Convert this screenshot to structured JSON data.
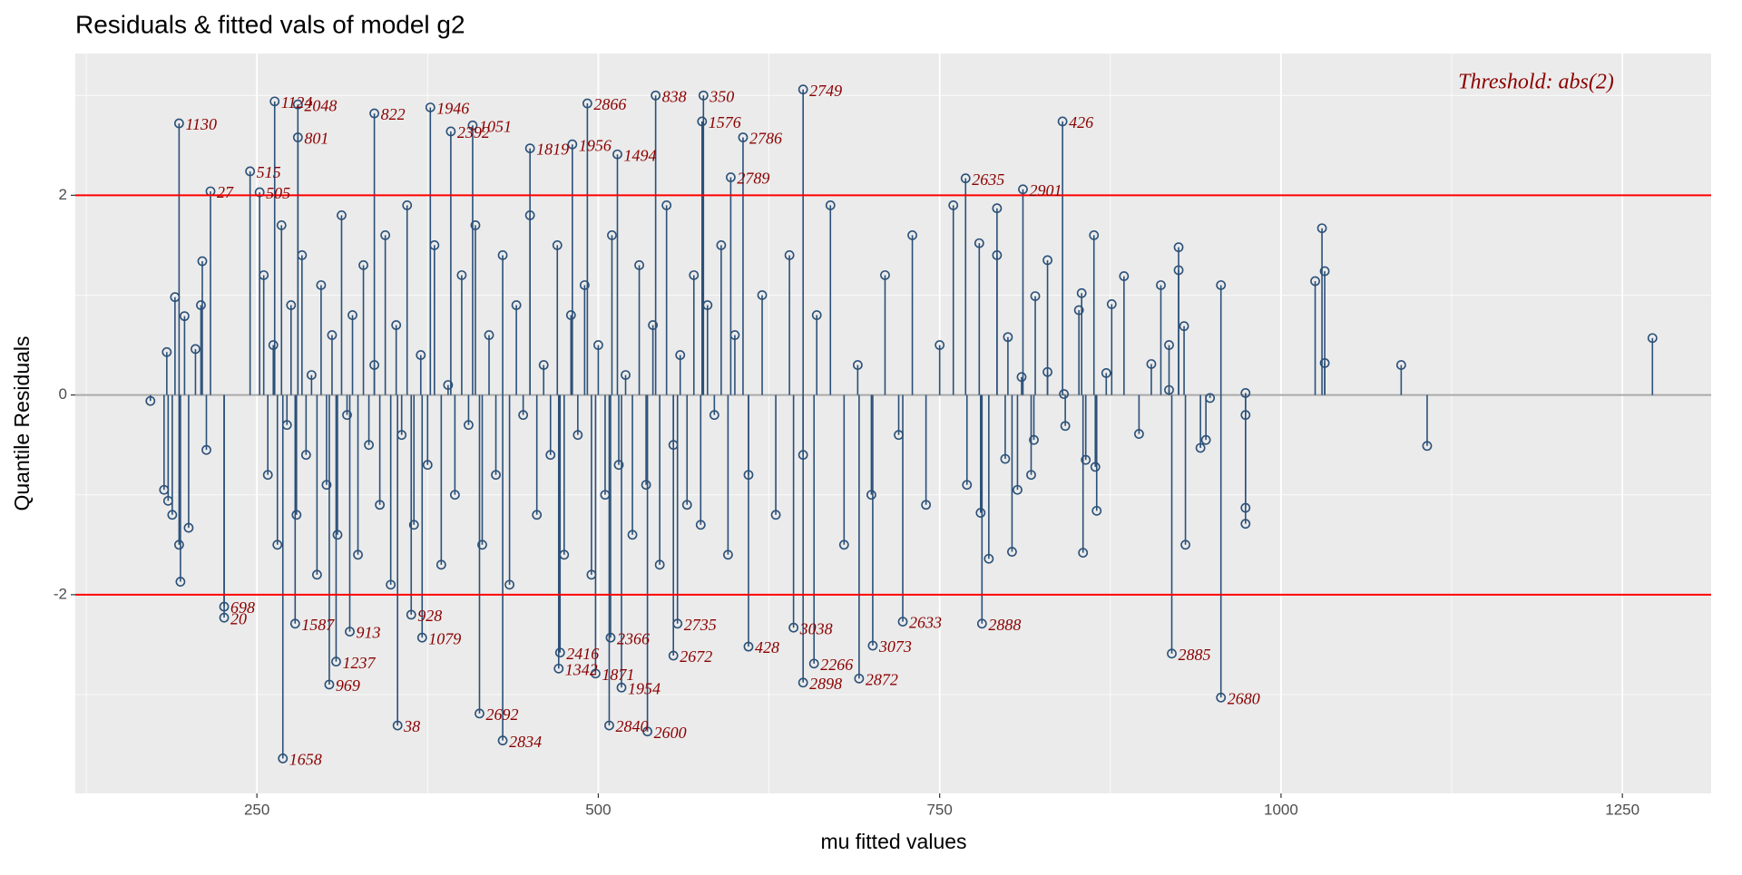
{
  "chart_data": {
    "type": "stem",
    "title": "Residuals & fitted vals of model g2",
    "x_label": "mu fitted values",
    "y_label": "Quantile Residuals",
    "annotation": "Threshold: abs(2)",
    "annotation_color": "#8b0000",
    "label_color": "#8b0000",
    "xlim": [
      117,
      1315
    ],
    "ylim": [
      -3.99,
      3.42
    ],
    "xticks": [
      250,
      500,
      750,
      1000,
      1250
    ],
    "yticks": [
      -2,
      0,
      2
    ],
    "minor_xticks": [
      125,
      375,
      625,
      875,
      1125
    ],
    "minor_yticks": [
      -3,
      -1,
      1,
      3
    ],
    "grid": true,
    "baseline": 0,
    "baseline_color": "#aaaaaa",
    "thresholds": [
      2,
      -2
    ],
    "threshold_color": "#ff0000",
    "series": [
      {
        "color": "#2b5078",
        "x": [
          193,
          216,
          245,
          252,
          263,
          280,
          280,
          336,
          377,
          392,
          408,
          450,
          481,
          492,
          514,
          542,
          577,
          576,
          606,
          650,
          597,
          769,
          811,
          840,
          226,
          226,
          278,
          318,
          308,
          303,
          353,
          269,
          413,
          430,
          472,
          471,
          498,
          517,
          508,
          536,
          509,
          555,
          558,
          610,
          643,
          658,
          650,
          691,
          701,
          723,
          781,
          920,
          956,
          363,
          371
        ],
        "values": [
          2.72,
          2.04,
          2.24,
          2.03,
          2.94,
          2.91,
          2.58,
          2.82,
          2.88,
          2.64,
          2.7,
          2.47,
          2.51,
          2.92,
          2.41,
          3.0,
          3.0,
          2.74,
          2.58,
          3.06,
          2.18,
          2.17,
          2.06,
          2.74,
          -2.12,
          -2.23,
          -2.29,
          -2.37,
          -2.67,
          -2.9,
          -3.31,
          -3.64,
          -3.19,
          -3.46,
          -2.58,
          -2.74,
          -2.79,
          -2.93,
          -3.31,
          -3.37,
          -2.43,
          -2.61,
          -2.29,
          -2.52,
          -2.33,
          -2.69,
          -2.88,
          -2.84,
          -2.51,
          -2.27,
          -2.29,
          -2.59,
          -3.03,
          -2.2,
          -2.43
        ],
        "labels": [
          "1130",
          "27",
          "515",
          "505",
          "1124",
          "2048",
          "801",
          "822",
          "1946",
          "2392",
          "1051",
          "1819",
          "1956",
          "2866",
          "1494",
          "838",
          "350",
          "1576",
          "2786",
          "2749",
          "2789",
          "2635",
          "2901",
          "426",
          "698",
          "20",
          "1587",
          "913",
          "1237",
          "969",
          "38",
          "1658",
          "2692",
          "2834",
          "2416",
          "1342",
          "1871",
          "1954",
          "2840",
          "2600",
          "2366",
          "2672",
          "2735",
          "428",
          "3038",
          "2266",
          "2898",
          "2872",
          "3073",
          "2633",
          "2888",
          "2885",
          "2680",
          "928",
          "1079"
        ]
      },
      {
        "color": "#2b5078",
        "x": [
          1025,
          1030,
          1032,
          1032,
          1088,
          1107,
          1272,
          974,
          974,
          974,
          974,
          956,
          929,
          925,
          925,
          930,
          918,
          918,
          912,
          905,
          896,
          945,
          941,
          948,
          876,
          885,
          872,
          863,
          864,
          865,
          855,
          857,
          852,
          854,
          841,
          842,
          829,
          829,
          820,
          819,
          817,
          810,
          807,
          803,
          792,
          792,
          800,
          798,
          786,
          780,
          779,
          172,
          184,
          182,
          185,
          188,
          190,
          193,
          194,
          197,
          200,
          210,
          209,
          205,
          213,
          255,
          258,
          262,
          265,
          268,
          272,
          275,
          279,
          283,
          286,
          290,
          294,
          297,
          301,
          305,
          309,
          312,
          316,
          320,
          324,
          328,
          332,
          336,
          340,
          344,
          348,
          352,
          356,
          360,
          365,
          370,
          375,
          380,
          385,
          390,
          395,
          400,
          405,
          410,
          415,
          420,
          425,
          430,
          435,
          440,
          445,
          450,
          455,
          460,
          465,
          470,
          475,
          480,
          485,
          490,
          495,
          500,
          505,
          510,
          515,
          520,
          525,
          530,
          535,
          540,
          545,
          550,
          555,
          560,
          565,
          570,
          575,
          580,
          585,
          590,
          595,
          600,
          610,
          620,
          630,
          640,
          650,
          660,
          670,
          680,
          690,
          700,
          710,
          720,
          730,
          740,
          750,
          760,
          770
        ],
        "values": [
          1.14,
          1.67,
          1.24,
          0.32,
          0.3,
          -0.51,
          0.57,
          0.02,
          -0.2,
          -1.13,
          -1.29,
          1.1,
          0.69,
          1.48,
          1.25,
          -1.5,
          0.05,
          0.5,
          1.1,
          0.31,
          -0.39,
          -0.45,
          -0.53,
          -0.03,
          0.91,
          1.19,
          0.22,
          1.6,
          -0.72,
          -1.16,
          -1.58,
          -0.65,
          0.85,
          1.02,
          0.01,
          -0.31,
          1.35,
          0.23,
          0.99,
          -0.45,
          -0.8,
          0.18,
          -0.95,
          -1.57,
          1.4,
          1.87,
          0.58,
          -0.64,
          -1.64,
          -1.18,
          1.52,
          -0.06,
          0.43,
          -0.95,
          -1.06,
          -1.2,
          0.98,
          -1.5,
          -1.87,
          0.79,
          -1.33,
          1.34,
          0.9,
          0.46,
          -0.55,
          1.2,
          -0.8,
          0.5,
          -1.5,
          1.7,
          -0.3,
          0.9,
          -1.2,
          1.4,
          -0.6,
          0.2,
          -1.8,
          1.1,
          -0.9,
          0.6,
          -1.4,
          1.8,
          -0.2,
          0.8,
          -1.6,
          1.3,
          -0.5,
          0.3,
          -1.1,
          1.6,
          -1.9,
          0.7,
          -0.4,
          1.9,
          -1.3,
          0.4,
          -0.7,
          1.5,
          -1.7,
          0.1,
          -1.0,
          1.2,
          -0.3,
          1.7,
          -1.5,
          0.6,
          -0.8,
          1.4,
          -1.9,
          0.9,
          -0.2,
          1.8,
          -1.2,
          0.3,
          -0.6,
          1.5,
          -1.6,
          0.8,
          -0.4,
          1.1,
          -1.8,
          0.5,
          -1.0,
          1.6,
          -0.7,
          0.2,
          -1.4,
          1.3,
          -0.9,
          0.7,
          -1.7,
          1.9,
          -0.5,
          0.4,
          -1.1,
          1.2,
          -1.3,
          0.9,
          -0.2,
          1.5,
          -1.6,
          0.6,
          -0.8,
          1.0,
          -1.2,
          1.4,
          -0.6,
          0.8,
          1.9,
          -1.5,
          0.3,
          -1.0,
          1.2,
          -0.4,
          1.6,
          -1.1,
          0.5,
          1.9,
          -0.9
        ]
      }
    ]
  }
}
